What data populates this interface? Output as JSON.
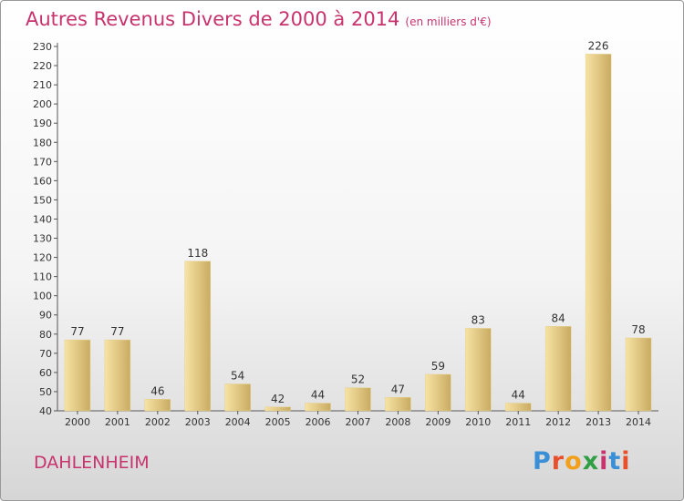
{
  "title": {
    "main": "Autres Revenus Divers de 2000 à 2014",
    "unit": "(en milliers d'€)"
  },
  "place": "DAHLENHEIM",
  "logo": {
    "text": "Proxiti",
    "colors": [
      "#3a8fd6",
      "#e8502c",
      "#f2a01c",
      "#2f9e44",
      "#c8336e",
      "#3a8fd6",
      "#e8502c"
    ]
  },
  "colors": {
    "bar_light": "#f7e3a4",
    "bar_dark": "#c9ab62",
    "text": "#333333",
    "title": "#c8336e"
  },
  "chart_data": {
    "type": "bar",
    "categories": [
      "2000",
      "2001",
      "2002",
      "2003",
      "2004",
      "2005",
      "2006",
      "2007",
      "2008",
      "2009",
      "2010",
      "2011",
      "2012",
      "2013",
      "2014"
    ],
    "values": [
      77,
      77,
      46,
      118,
      54,
      42,
      44,
      52,
      47,
      59,
      83,
      44,
      84,
      226,
      78
    ],
    "ylim": [
      40,
      230
    ],
    "yticks": [
      40,
      50,
      60,
      70,
      80,
      90,
      100,
      110,
      120,
      130,
      140,
      150,
      160,
      170,
      180,
      190,
      200,
      210,
      220,
      230
    ],
    "grid": false,
    "xlabel": "",
    "ylabel": ""
  }
}
